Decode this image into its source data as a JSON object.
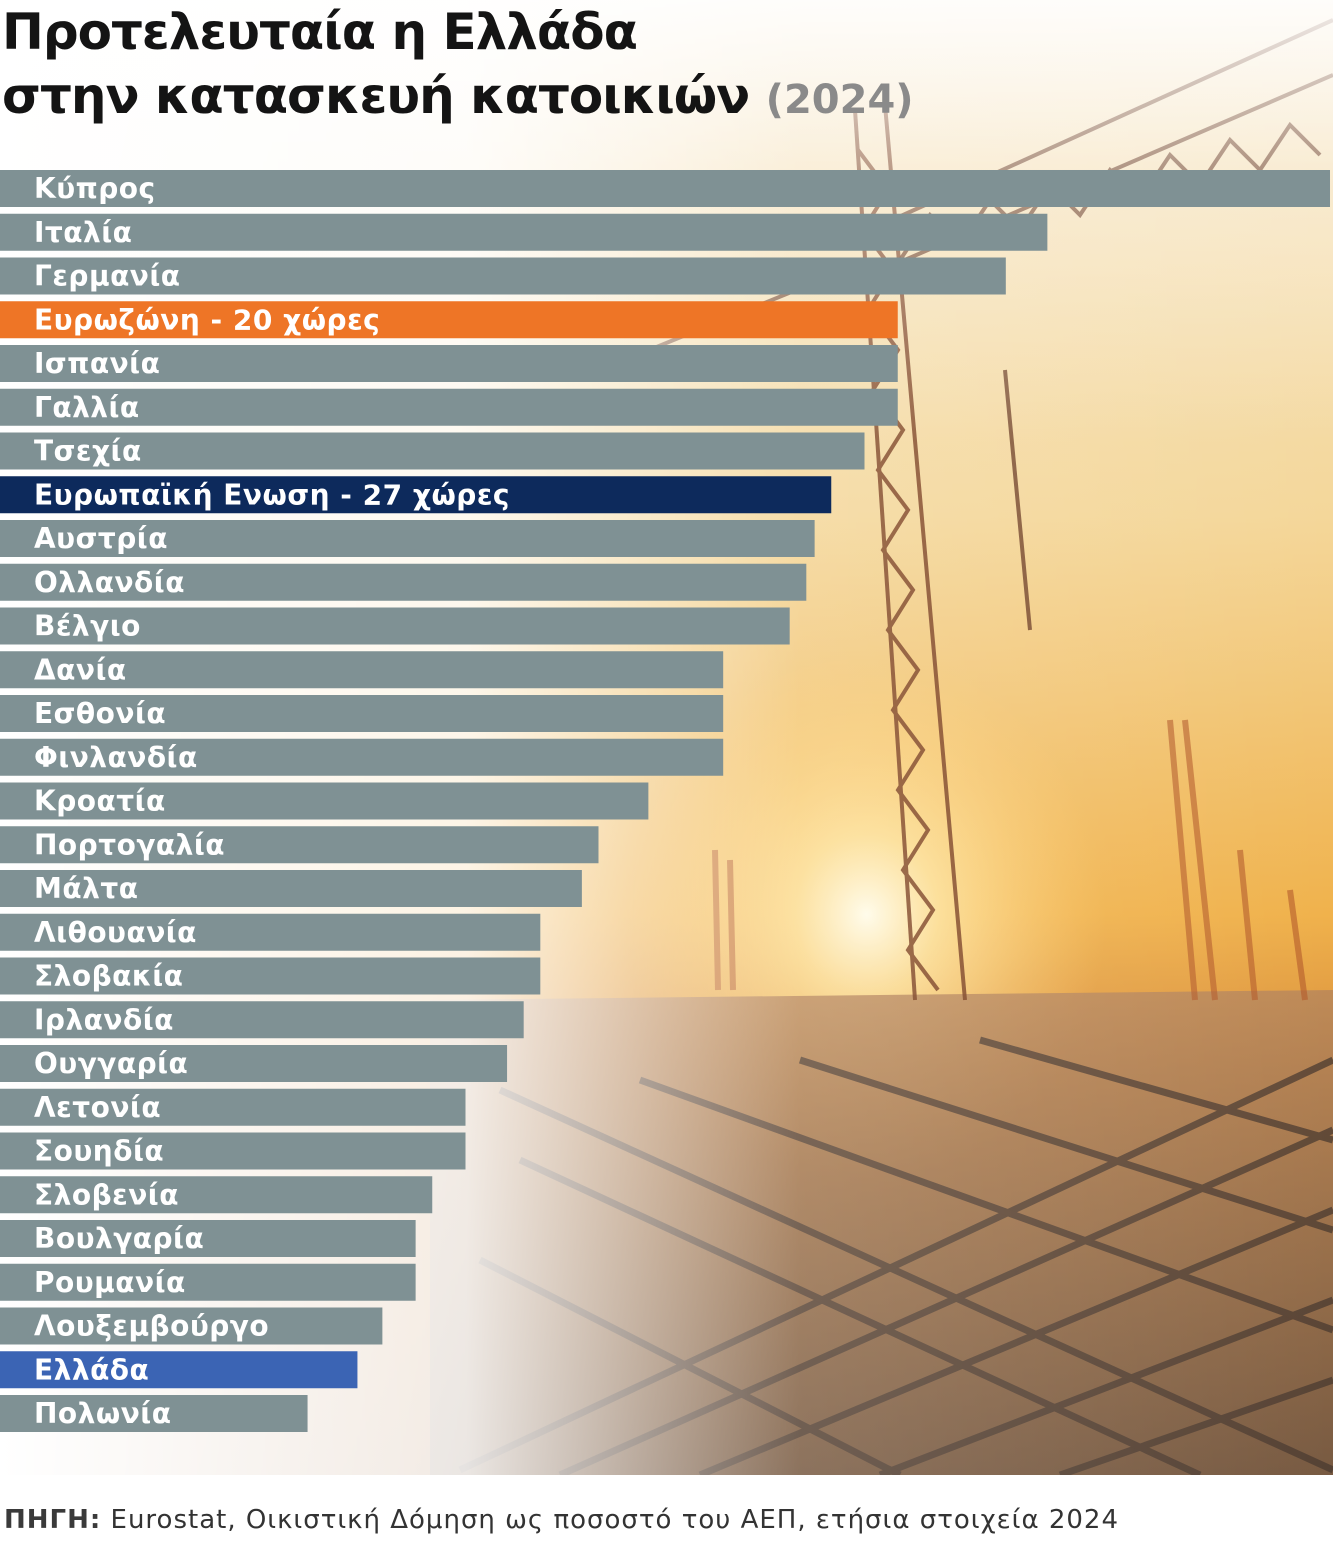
{
  "title": {
    "line1": "Προτελευταία η Ελλάδα",
    "line2": "στην κατασκευή κατοικιών",
    "year": "(2024)"
  },
  "source": {
    "label": "ΠΗΓΗ:",
    "text": "Eurostat, Οικιστική Δόμηση ως ποσοστό του ΑΕΠ, ετήσια στοιχεία 2024"
  },
  "colors": {
    "default_bar": "#7f9194",
    "eurozone_bar": "#ee7526",
    "eu_bar": "#0d2a5c",
    "greece_bar": "#3b64b4"
  },
  "chart_data": {
    "type": "bar",
    "orientation": "horizontal",
    "title": "Προτελευταία η Ελλάδα στην κατασκευή κατοικιών (2024)",
    "xlabel": "",
    "ylabel": "",
    "unit": "% ΑΕΠ",
    "xlim": [
      0,
      8.0
    ],
    "categories": [
      "Κύπρος",
      "Ιταλία",
      "Γερμανία",
      "Ευρωζώνη - 20 χώρες",
      "Ισπανία",
      "Γαλλία",
      "Τσεχία",
      "Ευρωπαϊκή Ενωση - 27 χώρες",
      "Αυστρία",
      "Ολλανδία",
      "Βέλγιο",
      "Δανία",
      "Εσθονία",
      "Φινλανδία",
      "Κροατία",
      "Πορτογαλία",
      "Μάλτα",
      "Λιθουανία",
      "Σλοβακία",
      "Ιρλανδία",
      "Ουγγαρία",
      "Λετονία",
      "Σουηδία",
      "Σλοβενία",
      "Βουλγαρία",
      "Ρουμανία",
      "Λουξεμβούργο",
      "Ελλάδα",
      "Πολωνία"
    ],
    "values": [
      8.0,
      6.3,
      6.05,
      5.4,
      5.4,
      5.4,
      5.2,
      5.0,
      4.9,
      4.85,
      4.75,
      4.35,
      4.35,
      4.35,
      3.9,
      3.6,
      3.5,
      3.25,
      3.25,
      3.15,
      3.05,
      2.8,
      2.8,
      2.6,
      2.5,
      2.5,
      2.3,
      2.15,
      1.85
    ],
    "highlight": {
      "Ευρωζώνη - 20 χώρες": "eurozone_bar",
      "Ευρωπαϊκή Ενωση - 27 χώρες": "eu_bar",
      "Ελλάδα": "greece_bar"
    },
    "grid": false,
    "legend": "none"
  }
}
